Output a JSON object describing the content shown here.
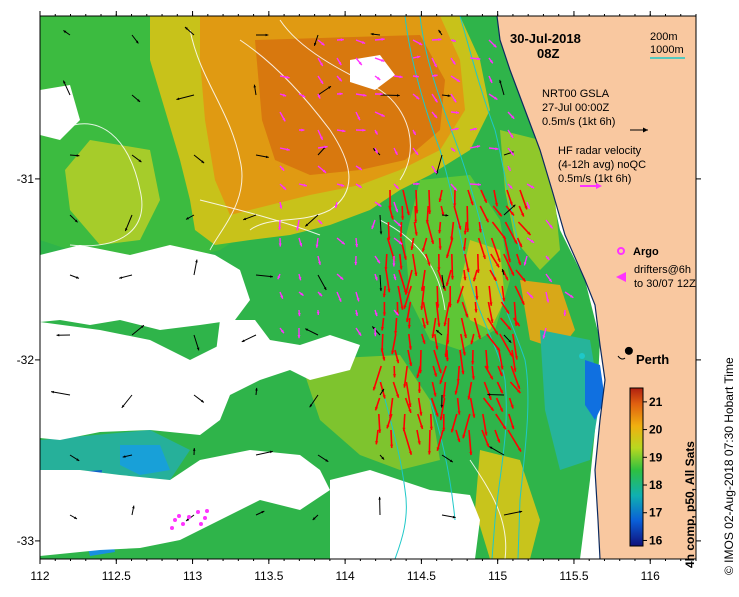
{
  "title": {
    "date": "30-Jul-2018",
    "time": "08Z"
  },
  "depth_legend": {
    "line1": "200m",
    "line2": "1000m",
    "color": "#1ec8c8"
  },
  "gsla": {
    "name": "NRT00 GSLA",
    "date": "27-Jul 00:00Z",
    "scale": "0.5m/s (1kt 6h)"
  },
  "hf_radar": {
    "line1": "HF radar velocity",
    "line2": "(4-12h avg) noQC",
    "scale": "0.5m/s (1kt 6h)"
  },
  "argo": {
    "label": "Argo",
    "color": "#ff33ff"
  },
  "drifters": {
    "line1": "drifters@6h",
    "line2": "to 30/07 12Z",
    "color": "#ff33ff"
  },
  "city": {
    "name": "Perth",
    "lon": 115.86,
    "lat": -31.95
  },
  "axes": {
    "x_ticks": [
      "112",
      "112.5",
      "113",
      "113.5",
      "114",
      "114.5",
      "115",
      "115.5",
      "116"
    ],
    "x_values": [
      112,
      112.5,
      113,
      113.5,
      114,
      114.5,
      115,
      115.5,
      116
    ],
    "y_ticks": [
      "-31",
      "-32",
      "-33"
    ],
    "y_values": [
      -31,
      -32,
      -33
    ],
    "xlim": [
      112,
      116.3
    ],
    "ylim": [
      -33.1,
      -30.1
    ]
  },
  "colorbar": {
    "title": "4h comp, p50, All Sats",
    "ticks": [
      "16",
      "17",
      "18",
      "19",
      "20",
      "21"
    ],
    "tick_values": [
      16,
      17,
      18,
      19,
      20,
      21
    ],
    "range": [
      15.8,
      21.5
    ]
  },
  "credit": "© IMOS 02-Aug-2018 07:30 Hobart Time",
  "colors": {
    "land": "#f9c8a0",
    "current_red": "#ff0000",
    "current_black": "#000000",
    "argo_magenta": "#ff33ff"
  }
}
